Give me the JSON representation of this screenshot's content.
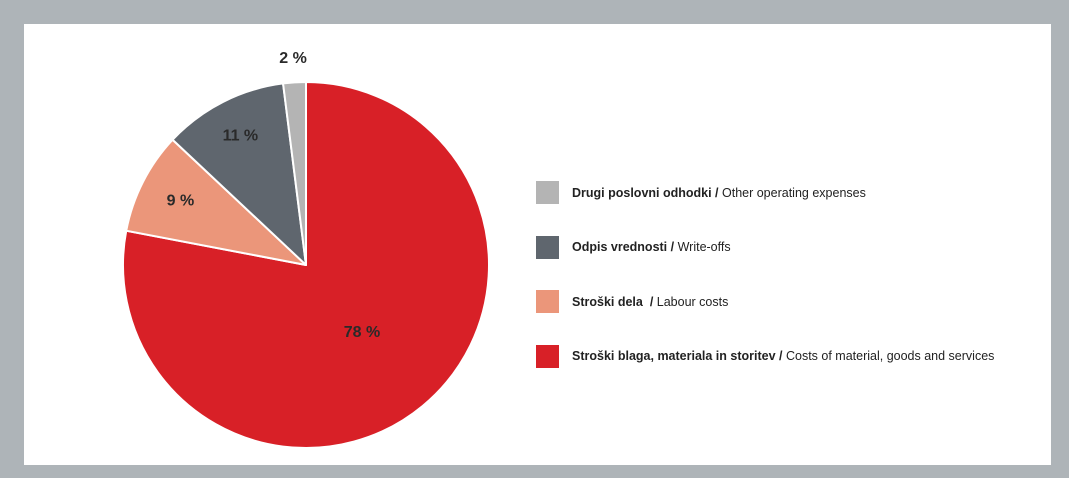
{
  "chart_data": {
    "type": "pie",
    "start_angle_deg": 0,
    "direction": "clockwise",
    "slices": [
      {
        "value": 78,
        "label": "78 %",
        "color": "#d82027",
        "legend_sl": "Stroški blaga, materiala in storitev",
        "legend_sep": " / ",
        "legend_en": "Costs of material, goods and services"
      },
      {
        "value": 9,
        "label": "9 %",
        "color": "#eb967a",
        "legend_sl": "Stroški dela",
        "legend_sep": "  / ",
        "legend_en": "Labour costs"
      },
      {
        "value": 11,
        "label": "11 %",
        "color": "#5f666e",
        "legend_sl": "Odpis vrednosti",
        "legend_sep": " / ",
        "legend_en": "Write-offs"
      },
      {
        "value": 2,
        "label": "2 %",
        "color": "#b4b4b4",
        "legend_sl": "Drugi poslovni odhodki",
        "legend_sep": " / ",
        "legend_en": "Other operating expenses"
      }
    ],
    "legend_order": [
      3,
      2,
      1,
      0
    ],
    "legend_position": "right"
  }
}
